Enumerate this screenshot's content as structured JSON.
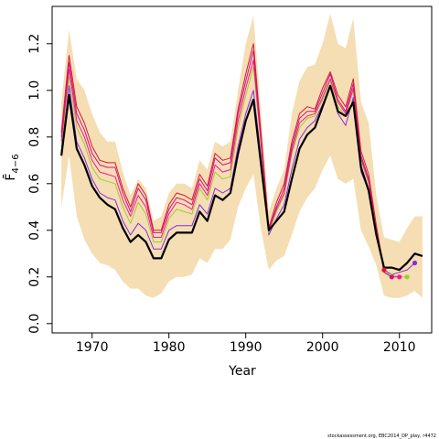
{
  "chart_data": {
    "type": "line",
    "title": "",
    "xlabel": "Year",
    "ylabel": "F̄",
    "ylabel_sub": "4−6",
    "xlim": [
      1964.8,
      2014.2
    ],
    "ylim": [
      -0.04,
      1.36
    ],
    "xticks": [
      1970,
      1980,
      1990,
      2000,
      2010
    ],
    "yticks": [
      0.0,
      0.2,
      0.4,
      0.6,
      0.8,
      1.0,
      1.2
    ],
    "ytick_labels": [
      "0.0",
      "0.2",
      "0.4",
      "0.6",
      "0.8",
      "1.0",
      "1.2"
    ],
    "grid": false,
    "band_color": "#f5deb3",
    "band": {
      "x": [
        1966,
        1967,
        1968,
        1969,
        1970,
        1971,
        1972,
        1973,
        1974,
        1975,
        1976,
        1977,
        1978,
        1979,
        1980,
        1981,
        1982,
        1983,
        1984,
        1985,
        1986,
        1987,
        1988,
        1989,
        1990,
        1991,
        1992,
        1993,
        1994,
        1995,
        1996,
        1997,
        1998,
        1999,
        2000,
        2001,
        2002,
        2003,
        2004,
        2005,
        2006,
        2007,
        2008,
        2009,
        2010,
        2011,
        2012,
        2013
      ],
      "upper": [
        0.95,
        1.26,
        1.05,
        1.0,
        0.9,
        0.82,
        0.78,
        0.78,
        0.65,
        0.55,
        0.62,
        0.58,
        0.44,
        0.46,
        0.56,
        0.6,
        0.6,
        0.58,
        0.7,
        0.66,
        0.78,
        0.76,
        0.78,
        1.0,
        1.2,
        1.32,
        0.9,
        0.48,
        0.58,
        0.66,
        0.9,
        1.04,
        1.1,
        1.11,
        1.2,
        1.33,
        1.2,
        1.18,
        1.31,
        0.95,
        0.86,
        0.55,
        0.37,
        0.36,
        0.35,
        0.41,
        0.46,
        0.46
      ],
      "lower": [
        0.5,
        0.72,
        0.46,
        0.36,
        0.3,
        0.26,
        0.25,
        0.23,
        0.18,
        0.15,
        0.15,
        0.12,
        0.11,
        0.13,
        0.18,
        0.2,
        0.2,
        0.21,
        0.28,
        0.26,
        0.32,
        0.32,
        0.36,
        0.5,
        0.58,
        0.64,
        0.4,
        0.23,
        0.27,
        0.29,
        0.38,
        0.48,
        0.54,
        0.58,
        0.66,
        0.72,
        0.62,
        0.6,
        0.62,
        0.4,
        0.33,
        0.25,
        0.12,
        0.11,
        0.11,
        0.12,
        0.14,
        0.11
      ]
    },
    "series": [
      {
        "color": "#000000",
        "width": 2.2,
        "x": [
          1966,
          1967,
          1968,
          1969,
          1970,
          1971,
          1972,
          1973,
          1974,
          1975,
          1976,
          1977,
          1978,
          1979,
          1980,
          1981,
          1982,
          1983,
          1984,
          1985,
          1986,
          1987,
          1988,
          1989,
          1990,
          1991,
          1992,
          1993,
          1994,
          1995,
          1996,
          1997,
          1998,
          1999,
          2000,
          2001,
          2002,
          2003,
          2004,
          2005,
          2006,
          2007,
          2008,
          2009,
          2010,
          2011,
          2012,
          2013
        ],
        "y": [
          0.72,
          0.98,
          0.75,
          0.68,
          0.59,
          0.54,
          0.51,
          0.49,
          0.41,
          0.35,
          0.38,
          0.35,
          0.28,
          0.28,
          0.36,
          0.39,
          0.39,
          0.39,
          0.48,
          0.44,
          0.55,
          0.53,
          0.56,
          0.73,
          0.87,
          0.96,
          0.68,
          0.4,
          0.44,
          0.48,
          0.62,
          0.75,
          0.81,
          0.84,
          0.93,
          1.02,
          0.91,
          0.89,
          0.95,
          0.67,
          0.57,
          0.38,
          0.24,
          0.24,
          0.23,
          0.26,
          0.3,
          0.29
        ]
      },
      {
        "color": "#dc143c",
        "width": 1,
        "x": [
          1966,
          1967,
          1968,
          1969,
          1970,
          1971,
          1972,
          1973,
          1974,
          1975,
          1976,
          1977,
          1978,
          1979,
          1980,
          1981,
          1982,
          1983,
          1984,
          1985,
          1986,
          1987,
          1988,
          1989,
          1990,
          1991,
          1992,
          1993,
          1994,
          1995,
          1996,
          1997,
          1998,
          1999,
          2000,
          2001,
          2002,
          2003,
          2004,
          2005,
          2006,
          2007,
          2008
        ],
        "y": [
          0.82,
          1.15,
          0.93,
          0.86,
          0.76,
          0.7,
          0.69,
          0.69,
          0.58,
          0.5,
          0.6,
          0.55,
          0.4,
          0.4,
          0.51,
          0.56,
          0.55,
          0.53,
          0.64,
          0.59,
          0.73,
          0.7,
          0.71,
          0.92,
          1.07,
          1.2,
          0.81,
          0.41,
          0.52,
          0.6,
          0.78,
          0.9,
          0.93,
          0.92,
          1.01,
          1.08,
          0.98,
          0.93,
          1.05,
          0.74,
          0.64,
          0.42,
          0.23
        ]
      },
      {
        "color": "#c71585",
        "width": 1,
        "x": [
          1966,
          1967,
          1968,
          1969,
          1970,
          1971,
          1972,
          1973,
          1974,
          1975,
          1976,
          1977,
          1978,
          1979,
          1980,
          1981,
          1982,
          1983,
          1984,
          1985,
          1986,
          1987,
          1988,
          1989,
          1990,
          1991,
          1992,
          1993,
          1994,
          1995,
          1996,
          1997,
          1998,
          1999,
          2000,
          2001,
          2002,
          2003,
          2004,
          2005,
          2006,
          2007,
          2008,
          2009
        ],
        "y": [
          0.8,
          1.12,
          0.9,
          0.83,
          0.73,
          0.68,
          0.67,
          0.67,
          0.56,
          0.48,
          0.58,
          0.53,
          0.39,
          0.39,
          0.49,
          0.54,
          0.53,
          0.51,
          0.62,
          0.57,
          0.71,
          0.68,
          0.69,
          0.9,
          1.04,
          1.17,
          0.79,
          0.4,
          0.5,
          0.58,
          0.76,
          0.88,
          0.91,
          0.91,
          0.99,
          1.07,
          0.96,
          0.91,
          1.03,
          0.72,
          0.62,
          0.41,
          0.22,
          0.2
        ]
      },
      {
        "color": "#ff1493",
        "width": 1,
        "x": [
          1966,
          1967,
          1968,
          1969,
          1970,
          1971,
          1972,
          1973,
          1974,
          1975,
          1976,
          1977,
          1978,
          1979,
          1980,
          1981,
          1982,
          1983,
          1984,
          1985,
          1986,
          1987,
          1988,
          1989,
          1990,
          1991,
          1992,
          1993,
          1994,
          1995,
          1996,
          1997,
          1998,
          1999,
          2000,
          2001,
          2002,
          2003,
          2004,
          2005,
          2006,
          2007,
          2008,
          2009,
          2010
        ],
        "y": [
          0.78,
          1.09,
          0.87,
          0.8,
          0.7,
          0.65,
          0.64,
          0.63,
          0.53,
          0.46,
          0.55,
          0.5,
          0.37,
          0.37,
          0.47,
          0.52,
          0.51,
          0.49,
          0.6,
          0.55,
          0.68,
          0.65,
          0.66,
          0.87,
          1.01,
          1.13,
          0.77,
          0.4,
          0.49,
          0.56,
          0.74,
          0.86,
          0.89,
          0.9,
          0.97,
          1.05,
          0.95,
          0.9,
          1.01,
          0.71,
          0.61,
          0.4,
          0.22,
          0.2,
          0.2
        ]
      },
      {
        "color": "#9acd32",
        "width": 1,
        "x": [
          1966,
          1967,
          1968,
          1969,
          1970,
          1971,
          1972,
          1973,
          1974,
          1975,
          1976,
          1977,
          1978,
          1979,
          1980,
          1981,
          1982,
          1983,
          1984,
          1985,
          1986,
          1987,
          1988,
          1989,
          1990,
          1991,
          1992,
          1993,
          1994,
          1995,
          1996,
          1997,
          1998,
          1999,
          2000,
          2001,
          2002,
          2003,
          2004,
          2005,
          2006,
          2007,
          2008,
          2009,
          2010,
          2011
        ],
        "y": [
          0.76,
          1.06,
          0.84,
          0.77,
          0.67,
          0.62,
          0.61,
          0.6,
          0.5,
          0.43,
          0.52,
          0.47,
          0.35,
          0.35,
          0.45,
          0.49,
          0.48,
          0.47,
          0.58,
          0.53,
          0.65,
          0.62,
          0.63,
          0.84,
          0.98,
          1.1,
          0.76,
          0.39,
          0.48,
          0.55,
          0.73,
          0.84,
          0.88,
          0.89,
          0.96,
          1.04,
          0.93,
          0.89,
          1.0,
          0.7,
          0.6,
          0.4,
          0.22,
          0.21,
          0.2,
          0.2
        ]
      },
      {
        "color": "#8a2be2",
        "width": 1,
        "x": [
          1966,
          1967,
          1968,
          1969,
          1970,
          1971,
          1972,
          1973,
          1974,
          1975,
          1976,
          1977,
          1978,
          1979,
          1980,
          1981,
          1982,
          1983,
          1984,
          1985,
          1986,
          1987,
          1988,
          1989,
          1990,
          1991,
          1992,
          1993,
          1994,
          1995,
          1996,
          1997,
          1998,
          1999,
          2000,
          2001,
          2002,
          2003,
          2004,
          2005,
          2006,
          2007,
          2008,
          2009,
          2010,
          2011,
          2012
        ],
        "y": [
          0.74,
          1.02,
          0.78,
          0.71,
          0.62,
          0.56,
          0.54,
          0.53,
          0.44,
          0.38,
          0.43,
          0.4,
          0.32,
          0.32,
          0.4,
          0.42,
          0.42,
          0.42,
          0.51,
          0.47,
          0.58,
          0.56,
          0.58,
          0.76,
          0.9,
          1.0,
          0.71,
          0.38,
          0.45,
          0.51,
          0.66,
          0.79,
          0.84,
          0.87,
          0.94,
          1.02,
          0.9,
          0.85,
          0.97,
          0.65,
          0.57,
          0.38,
          0.23,
          0.21,
          0.22,
          0.23,
          0.26
        ]
      }
    ],
    "endpoints": [
      {
        "x": 2008,
        "y": 0.23,
        "color": "#dc143c"
      },
      {
        "x": 2009,
        "y": 0.2,
        "color": "#c71585"
      },
      {
        "x": 2010,
        "y": 0.2,
        "color": "#ff1493"
      },
      {
        "x": 2011,
        "y": 0.2,
        "color": "#9acd32"
      },
      {
        "x": 2012,
        "y": 0.26,
        "color": "#8a2be2"
      }
    ],
    "credit": "stockassessment.org, EBC2014_DP_play, r4472"
  }
}
